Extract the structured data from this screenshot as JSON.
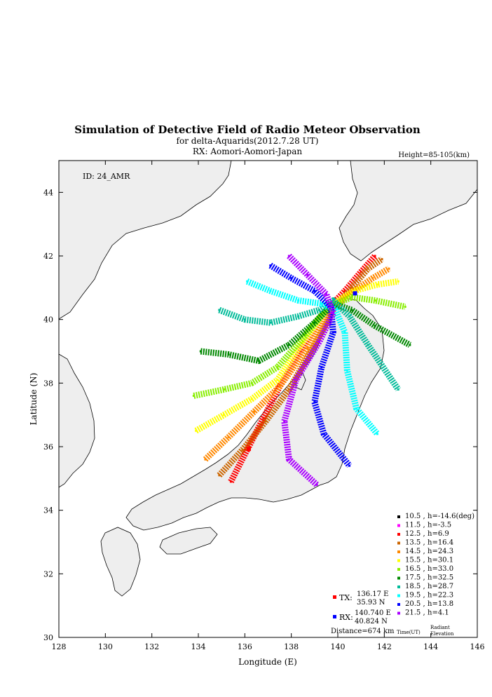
{
  "chart_data": {
    "type": "scatter",
    "title": "Simulation of Detective Field of Radio Meteor Observation",
    "subtitle1": "for delta-Aquarids(2012.7.28 UT)",
    "subtitle2": "RX: Aomori-Aomori-Japan",
    "height_note": "Height=85-105(km)",
    "id_label": "ID: 24_AMR",
    "xlabel": "Longitude (E)",
    "ylabel": "Latitude (N)",
    "xlim": [
      128,
      146
    ],
    "ylim": [
      30,
      45
    ],
    "xticks": [
      "128",
      "130",
      "132",
      "134",
      "136",
      "138",
      "140",
      "142",
      "144",
      "146"
    ],
    "yticks": [
      "30",
      "32",
      "34",
      "36",
      "38",
      "40",
      "42",
      "44"
    ],
    "legend_position": "bottom-right",
    "legend_footer": {
      "time": "Time(UT)",
      "radiant1": "Radiant",
      "radiant2": "Elevation"
    },
    "series": [
      {
        "name": "10.5",
        "elev": "h=-14.6(deg)",
        "color": "#000000",
        "points": []
      },
      {
        "name": "11.5",
        "elev": "h=-3.5",
        "color": "#ff00ff",
        "points": []
      },
      {
        "name": "12.5",
        "elev": "h=6.9",
        "color": "#ff0000",
        "points": [
          [
            135.4,
            34.9
          ],
          [
            136.1,
            35.9
          ],
          [
            136.8,
            36.9
          ],
          [
            137.5,
            37.9
          ],
          [
            138.4,
            39.0
          ],
          [
            139.4,
            40.2
          ],
          [
            140.3,
            40.9
          ],
          [
            141.0,
            41.5
          ],
          [
            141.6,
            42.0
          ]
        ]
      },
      {
        "name": "13.5",
        "elev": "h=16.4",
        "color": "#cc6600",
        "points": [
          [
            134.9,
            35.1
          ],
          [
            135.9,
            35.9
          ],
          [
            136.9,
            36.8
          ],
          [
            137.9,
            37.8
          ],
          [
            139.0,
            39.2
          ],
          [
            139.8,
            40.3
          ],
          [
            140.6,
            41.0
          ],
          [
            141.3,
            41.6
          ],
          [
            141.9,
            41.9
          ]
        ]
      },
      {
        "name": "14.5",
        "elev": "h=24.3",
        "color": "#ff8800",
        "points": [
          [
            134.3,
            35.6
          ],
          [
            135.3,
            36.3
          ],
          [
            136.4,
            37.1
          ],
          [
            137.5,
            37.9
          ],
          [
            138.7,
            39.1
          ],
          [
            139.7,
            40.3
          ],
          [
            140.7,
            40.9
          ],
          [
            141.5,
            41.3
          ],
          [
            142.2,
            41.6
          ]
        ]
      },
      {
        "name": "15.5",
        "elev": "h=30.1",
        "color": "#ffff00",
        "points": [
          [
            133.9,
            36.5
          ],
          [
            135.1,
            37.0
          ],
          [
            136.3,
            37.5
          ],
          [
            137.4,
            38.1
          ],
          [
            138.5,
            39.3
          ],
          [
            139.6,
            40.4
          ],
          [
            140.7,
            40.9
          ],
          [
            141.7,
            41.1
          ],
          [
            142.6,
            41.2
          ]
        ]
      },
      {
        "name": "16.5",
        "elev": "h=33.0",
        "color": "#88ee00",
        "points": [
          [
            133.8,
            37.6
          ],
          [
            135.1,
            37.8
          ],
          [
            136.3,
            38.0
          ],
          [
            137.4,
            38.5
          ],
          [
            138.6,
            39.5
          ],
          [
            139.6,
            40.4
          ],
          [
            140.6,
            40.7
          ],
          [
            141.6,
            40.6
          ],
          [
            142.9,
            40.4
          ]
        ]
      },
      {
        "name": "17.5",
        "elev": "h=32.5",
        "color": "#008800",
        "points": [
          [
            134.1,
            39.0
          ],
          [
            135.3,
            38.9
          ],
          [
            136.6,
            38.7
          ],
          [
            137.9,
            39.2
          ],
          [
            139.0,
            39.9
          ],
          [
            139.8,
            40.5
          ],
          [
            140.6,
            40.3
          ],
          [
            141.6,
            39.8
          ],
          [
            143.1,
            39.2
          ]
        ]
      },
      {
        "name": "18.5",
        "elev": "h=28.7",
        "color": "#00bb99",
        "points": [
          [
            134.9,
            40.3
          ],
          [
            136.0,
            40.0
          ],
          [
            137.1,
            39.9
          ],
          [
            138.3,
            40.1
          ],
          [
            139.2,
            40.3
          ],
          [
            139.8,
            40.6
          ],
          [
            140.5,
            40.1
          ],
          [
            141.3,
            39.2
          ],
          [
            142.6,
            37.8
          ]
        ]
      },
      {
        "name": "19.5",
        "elev": "h=22.3",
        "color": "#00ffff",
        "points": [
          [
            136.1,
            41.2
          ],
          [
            137.1,
            40.9
          ],
          [
            138.3,
            40.6
          ],
          [
            139.3,
            40.5
          ],
          [
            139.9,
            40.3
          ],
          [
            140.3,
            39.6
          ],
          [
            140.4,
            38.4
          ],
          [
            140.8,
            37.2
          ],
          [
            141.7,
            36.4
          ]
        ]
      },
      {
        "name": "20.5",
        "elev": "h=13.8",
        "color": "#0000ff",
        "points": [
          [
            137.1,
            41.7
          ],
          [
            138.0,
            41.3
          ],
          [
            139.0,
            40.9
          ],
          [
            139.7,
            40.4
          ],
          [
            139.8,
            39.6
          ],
          [
            139.3,
            38.5
          ],
          [
            139.0,
            37.4
          ],
          [
            139.4,
            36.4
          ],
          [
            140.5,
            35.4
          ]
        ]
      },
      {
        "name": "21.5",
        "elev": "h=4.1",
        "color": "#aa00ff",
        "points": [
          [
            137.9,
            42.0
          ],
          [
            138.7,
            41.4
          ],
          [
            139.5,
            40.8
          ],
          [
            139.8,
            40.2
          ],
          [
            139.2,
            39.3
          ],
          [
            138.2,
            38.1
          ],
          [
            137.7,
            36.8
          ],
          [
            137.9,
            35.6
          ],
          [
            139.1,
            34.8
          ]
        ]
      }
    ],
    "tx": {
      "label": "TX:",
      "lon": "136.17 E",
      "lat": "35.93 N",
      "color": "#ff0000"
    },
    "rx": {
      "label": "RX:",
      "lon": "140.740 E",
      "lat": "40.824 N",
      "color": "#0000ff"
    },
    "distance": "Distance=674 km"
  }
}
